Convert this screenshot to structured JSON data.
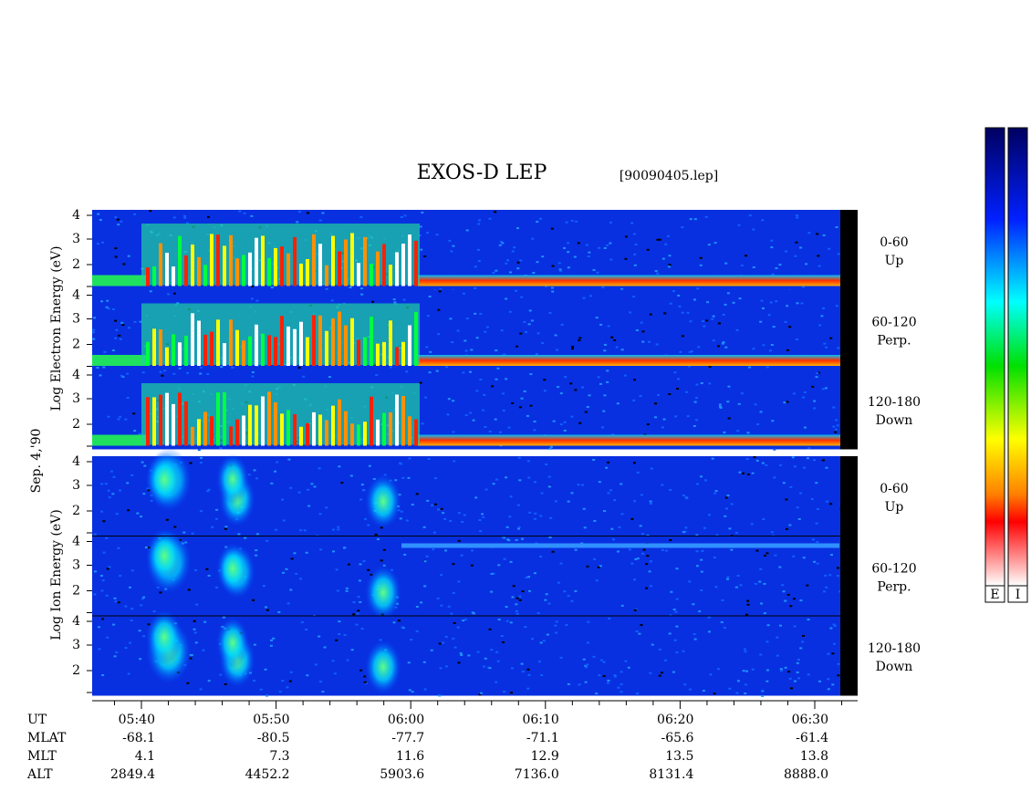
{
  "header": {
    "title": "EXOS-D LEP",
    "file": "[90090405.lep]"
  },
  "left_labels": {
    "electron": "Log Electron Energy (eV)",
    "date": "Sep. 4,'90",
    "ion": "Log Ion Energy (eV)"
  },
  "y_tick_labels": [
    "2",
    "3",
    "4"
  ],
  "electron_panels": [
    {
      "range": "0-60",
      "direction": "Up"
    },
    {
      "range": "60-120",
      "direction": "Perp."
    },
    {
      "range": "120-180",
      "direction": "Down"
    }
  ],
  "ion_panels": [
    {
      "range": "0-60",
      "direction": "Up"
    },
    {
      "range": "60-120",
      "direction": "Perp."
    },
    {
      "range": "120-180",
      "direction": "Down"
    }
  ],
  "color_bars": [
    "E",
    "I"
  ],
  "time_table": {
    "row_labels": [
      "UT",
      "MLAT",
      "MLT",
      "ALT"
    ],
    "columns": [
      [
        "05:40",
        "-68.1",
        "4.1",
        "2849.4"
      ],
      [
        "05:50",
        "-80.5",
        "7.3",
        "4452.2"
      ],
      [
        "06:00",
        "-77.7",
        "11.6",
        "5903.6"
      ],
      [
        "06:10",
        "-71.1",
        "12.9",
        "7136.0"
      ],
      [
        "06:20",
        "-65.6",
        "13.5",
        "8131.4"
      ],
      [
        "06:30",
        "-61.4",
        "13.8",
        "8888.0"
      ]
    ]
  }
}
